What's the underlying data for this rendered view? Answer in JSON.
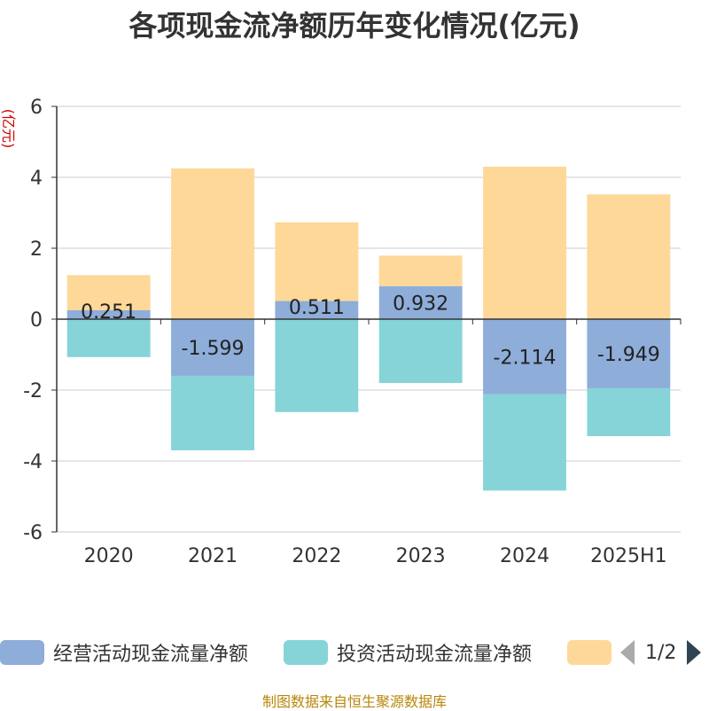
{
  "chart_data": {
    "type": "bar",
    "stacked": true,
    "title": "各项现金流净额历年变化情况(亿元)",
    "ylabel": "(亿元)",
    "ylim": [
      -6,
      6
    ],
    "yticks": [
      -6,
      -4,
      -2,
      0,
      2,
      4,
      6
    ],
    "categories": [
      "2020",
      "2021",
      "2022",
      "2023",
      "2024",
      "2025H1"
    ],
    "series": [
      {
        "name": "经营活动现金流量净额",
        "color": "#8eadd9",
        "values": [
          0.251,
          -1.599,
          0.511,
          0.932,
          -2.114,
          -1.949
        ],
        "labels": [
          "0.251",
          "-1.599",
          "0.511",
          "0.932",
          "-2.114",
          "-1.949"
        ]
      },
      {
        "name": "投资活动现金流量净额",
        "color": "#86d4d8",
        "values": [
          -1.07,
          -2.1,
          -2.62,
          -1.8,
          -2.72,
          -1.35
        ]
      },
      {
        "name": "",
        "color": "#fed899",
        "values": [
          0.99,
          4.25,
          2.22,
          0.86,
          4.3,
          3.52
        ]
      }
    ],
    "legend": {
      "position": "bottom",
      "page": "1/2"
    },
    "grid": true
  },
  "source": "制图数据来自恒生聚源数据库"
}
